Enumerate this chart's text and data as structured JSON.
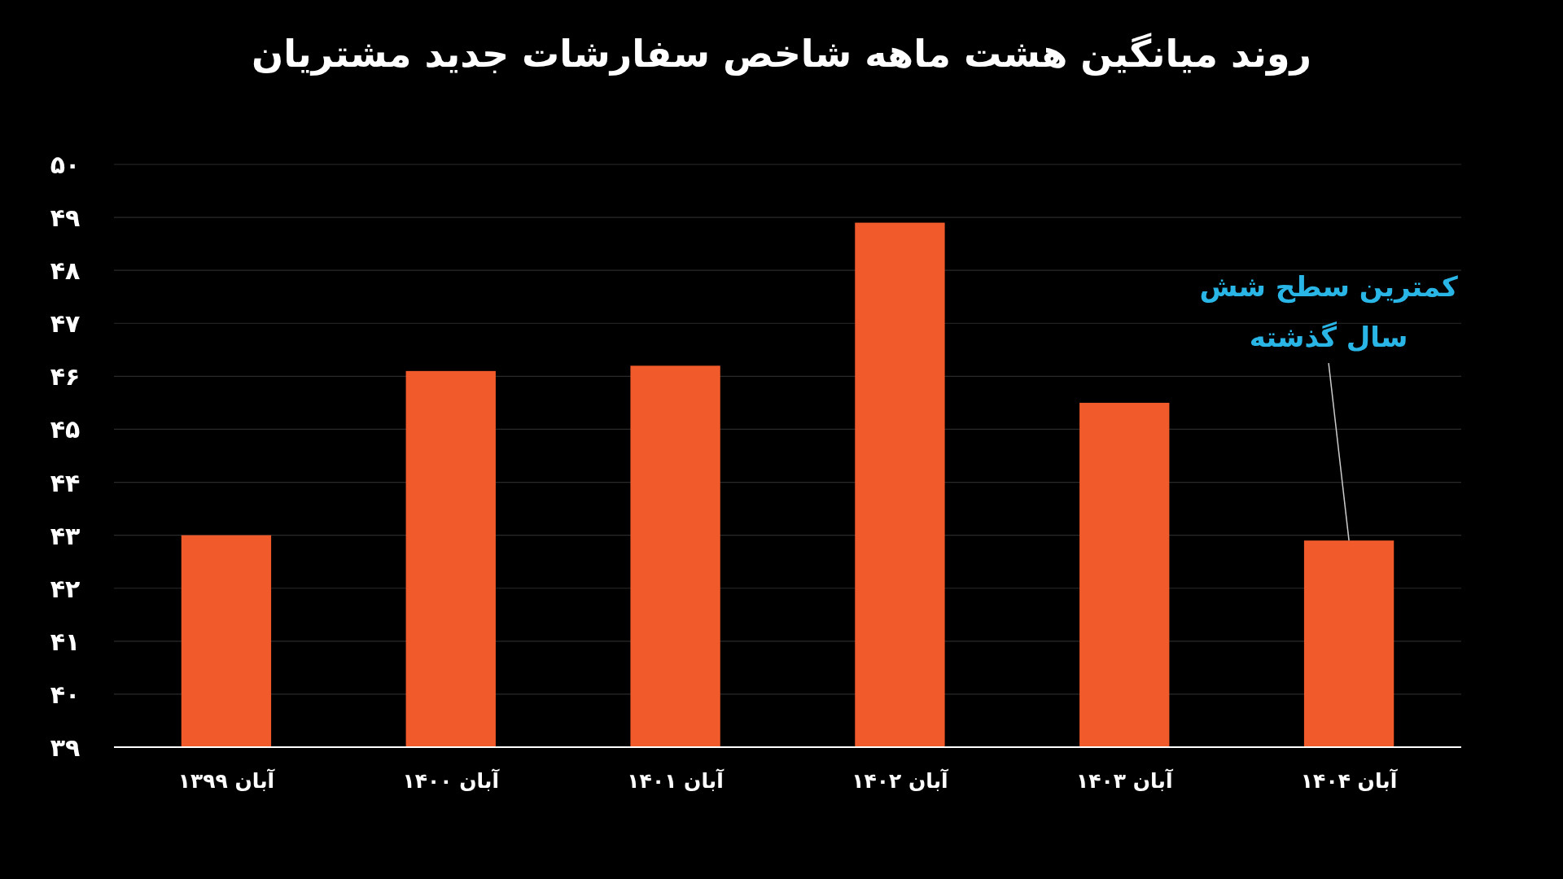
{
  "chart_data": {
    "type": "bar",
    "title": "روند میانگین هشت ماهه شاخص سفارشات جدید مشتریان",
    "categories": [
      "آبان ۱۳۹۹",
      "آبان ۱۴۰۰",
      "آبان ۱۴۰۱",
      "آبان ۱۴۰۲",
      "آبان ۱۴۰۳",
      "آبان ۱۴۰۴"
    ],
    "values": [
      43.0,
      46.1,
      46.2,
      48.9,
      45.5,
      42.9
    ],
    "color": "#f15a2b",
    "ylim": [
      39,
      50
    ],
    "yticks": [
      {
        "value": 39,
        "label": "۳۹"
      },
      {
        "value": 40,
        "label": "۴۰"
      },
      {
        "value": 41,
        "label": "۴۱"
      },
      {
        "value": 42,
        "label": "۴۲"
      },
      {
        "value": 43,
        "label": "۴۳"
      },
      {
        "value": 44,
        "label": "۴۴"
      },
      {
        "value": 45,
        "label": "۴۵"
      },
      {
        "value": 46,
        "label": "۴۶"
      },
      {
        "value": 47,
        "label": "۴۷"
      },
      {
        "value": 48,
        "label": "۴۸"
      },
      {
        "value": 49,
        "label": "۴۹"
      },
      {
        "value": 50,
        "label": "۵۰"
      }
    ],
    "grid": "y",
    "annotations": [
      {
        "text": "کمترین سطح شش سال گذشته",
        "x": "آبان ۱۴۰۴",
        "y": 42.9
      }
    ]
  }
}
